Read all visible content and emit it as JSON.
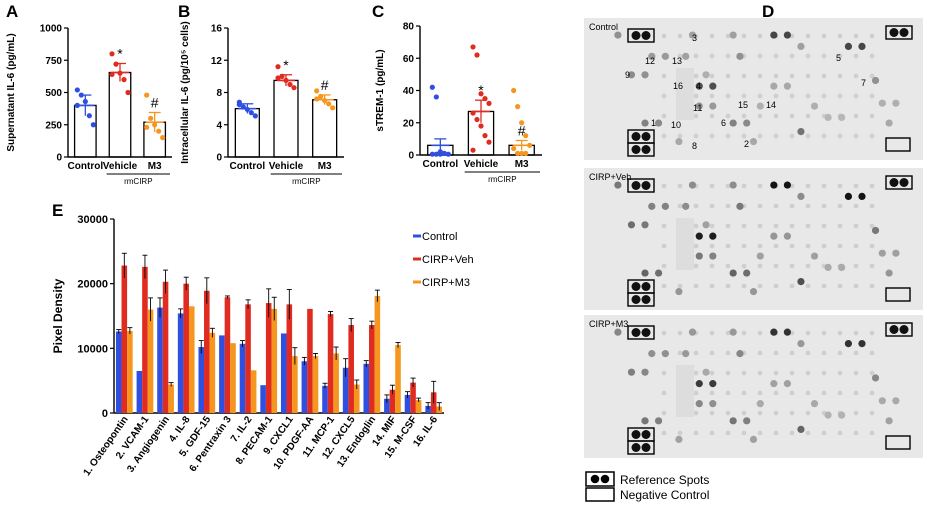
{
  "colors": {
    "control": "#2f4fe0",
    "vehicle": "#e02b20",
    "m3": "#f5961e"
  },
  "chart_data": [
    {
      "id": "A",
      "type": "bar",
      "panel_label": "A",
      "ylabel": "Supernatant IL-6 (pg/mL)",
      "ylim": [
        0,
        1000
      ],
      "yticks": [
        "0",
        "250",
        "500",
        "750",
        "1000"
      ],
      "categories": [
        "Control",
        "Vehicle",
        "M3"
      ],
      "values": [
        400,
        655,
        270
      ],
      "errors": [
        80,
        70,
        75
      ],
      "points": [
        [
          520,
          480,
          430,
          320,
          250,
          400
        ],
        [
          800,
          720,
          650,
          600,
          500,
          640
        ],
        [
          480,
          300,
          250,
          200,
          150,
          230
        ]
      ],
      "marks": [
        "",
        "*",
        "#"
      ],
      "group_label": "rmCIRP"
    },
    {
      "id": "B",
      "type": "bar",
      "panel_label": "B",
      "ylabel": "Intracellular IL-6 (pg/10⁵ cells)",
      "ylim": [
        0,
        16
      ],
      "yticks": [
        "0",
        "4",
        "8",
        "12",
        "16"
      ],
      "categories": [
        "Control",
        "Vehicle",
        "M3"
      ],
      "values": [
        6,
        9.5,
        7.1
      ],
      "errors": [
        0.6,
        0.7,
        0.6
      ],
      "points": [
        [
          6.8,
          6.2,
          5.9,
          5.5,
          5.1,
          6.5
        ],
        [
          11.2,
          10.0,
          9.5,
          9.0,
          8.6,
          9.8
        ],
        [
          8.2,
          7.5,
          7.0,
          6.6,
          6.1,
          7.2
        ]
      ],
      "marks": [
        "",
        "*",
        "#"
      ],
      "group_label": "rmCIRP"
    },
    {
      "id": "C",
      "type": "bar",
      "panel_label": "C",
      "ylabel": "sTREM-1 (pg/mL)",
      "ylim": [
        0,
        80
      ],
      "yticks": [
        "0",
        "20",
        "40",
        "60",
        "80"
      ],
      "categories": [
        "Control",
        "Vehicle",
        "M3"
      ],
      "values": [
        6,
        27,
        6
      ],
      "errors": [
        4,
        7,
        3
      ],
      "points": [
        [
          42,
          36,
          2,
          1,
          0.5,
          0.5,
          0.5,
          0.5
        ],
        [
          67,
          62,
          38,
          35,
          32,
          26,
          22,
          18,
          12,
          8,
          3
        ],
        [
          40,
          30,
          20,
          12,
          6,
          4,
          1,
          1,
          1
        ]
      ],
      "marks": [
        "",
        "*",
        "#"
      ],
      "group_label": "rmCIRP"
    },
    {
      "id": "E",
      "type": "bar",
      "panel_label": "E",
      "ylabel": "Pixel Density",
      "ylim": [
        0,
        30000
      ],
      "yticks": [
        "0",
        "10000",
        "20000",
        "30000"
      ],
      "categories": [
        "1. Osteopontin",
        "2. VCAM-1",
        "3. Angiogenin",
        "4. IL-8",
        "5. GDF-15",
        "6. Pentraxin 3",
        "7. IL-2",
        "8. PECAM-1",
        "9. CXCL1",
        "10. PDGF-AA",
        "11. MCP-1",
        "12. CXCL5",
        "13. Endoglin",
        "14. MIF",
        "15. M-CSF",
        "16. IL-6"
      ],
      "series": [
        {
          "name": "Control",
          "values": [
            12600,
            6500,
            16300,
            15400,
            10200,
            12000,
            10700,
            4300,
            12300,
            8000,
            4200,
            7000,
            7600,
            2200,
            2800,
            1100
          ],
          "errors": [
            300,
            0,
            1500,
            700,
            1000,
            0,
            500,
            0,
            0,
            600,
            400,
            1400,
            500,
            600,
            500,
            500
          ]
        },
        {
          "name": "CIRP+Veh",
          "values": [
            22800,
            22600,
            20300,
            20000,
            18900,
            17900,
            16800,
            17000,
            16800,
            16100,
            15300,
            13600,
            13600,
            3600,
            4700,
            3200
          ],
          "errors": [
            1900,
            1800,
            1800,
            1000,
            2000,
            200,
            700,
            2200,
            2300,
            0,
            400,
            1000,
            600,
            700,
            700,
            1700
          ]
        },
        {
          "name": "CIRP+M3",
          "values": [
            12700,
            16000,
            4400,
            16500,
            12400,
            10800,
            6600,
            16100,
            8800,
            8800,
            9200,
            4400,
            18100,
            10500,
            2000,
            1000
          ],
          "errors": [
            500,
            1800,
            300,
            0,
            700,
            0,
            0,
            1800,
            1300,
            400,
            1000,
            700,
            900,
            400,
            300,
            600
          ]
        }
      ],
      "legend": [
        "Control",
        "CIRP+Veh",
        "CIRP+M3"
      ]
    }
  ],
  "panel_d": {
    "panel_label": "D",
    "blots": [
      {
        "title": "Control"
      },
      {
        "title": "CIRP+Veh"
      },
      {
        "title": "CIRP+M3"
      }
    ],
    "spot_labels": [
      "1",
      "2",
      "3",
      "4",
      "5",
      "6",
      "7",
      "8",
      "9",
      "10",
      "11",
      "12",
      "13",
      "14",
      "15",
      "16"
    ],
    "legend_reference": "Reference Spots",
    "legend_negative": "Negative Control"
  }
}
